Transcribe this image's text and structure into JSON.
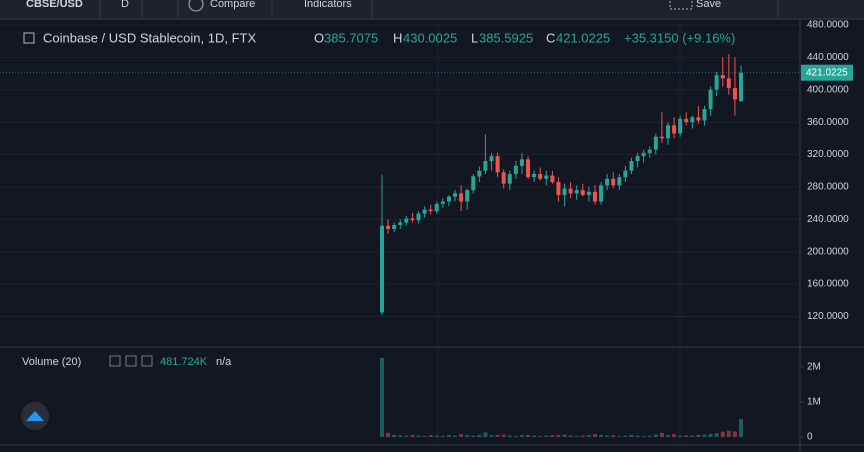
{
  "toolbar": {
    "symbol": "CBSE/USD",
    "interval": "D",
    "compare": "Compare",
    "indicators": "Indicators",
    "save": "Save"
  },
  "legend": {
    "title": "Coinbase / USD Stablecoin, 1D, FTX",
    "o": "O",
    "h": "H",
    "l": "L",
    "c": "C",
    "change": "+35.3150 (+9.16%)"
  },
  "volume_legend": {
    "title": "Volume (20)",
    "value": "481.724K",
    "na": "n/a"
  },
  "chart": {
    "type": "candlestick",
    "candles": [
      [
        125,
        295,
        122,
        232
      ],
      [
        232,
        240,
        222,
        228
      ],
      [
        228,
        236,
        224,
        233
      ],
      [
        233,
        240,
        228,
        236
      ],
      [
        236,
        244,
        232,
        241
      ],
      [
        241,
        248,
        236,
        239
      ],
      [
        239,
        250,
        235,
        247
      ],
      [
        247,
        256,
        242,
        252
      ],
      [
        252,
        258,
        246,
        250
      ],
      [
        250,
        262,
        247,
        259
      ],
      [
        259,
        266,
        254,
        262
      ],
      [
        262,
        270,
        256,
        268
      ],
      [
        268,
        276,
        262,
        272
      ],
      [
        272,
        282,
        250,
        262
      ],
      [
        262,
        278,
        252,
        276
      ],
      [
        276,
        296,
        272,
        293
      ],
      [
        293,
        305,
        286,
        300
      ],
      [
        300,
        345,
        296,
        312
      ],
      [
        312,
        322,
        300,
        318
      ],
      [
        318,
        322,
        292,
        298
      ],
      [
        298,
        302,
        278,
        284
      ],
      [
        284,
        300,
        276,
        296
      ],
      [
        296,
        312,
        290,
        306
      ],
      [
        306,
        322,
        296,
        314
      ],
      [
        314,
        318,
        290,
        292
      ],
      [
        292,
        300,
        286,
        296
      ],
      [
        296,
        304,
        288,
        290
      ],
      [
        290,
        300,
        282,
        294
      ],
      [
        294,
        300,
        284,
        286
      ],
      [
        286,
        292,
        262,
        270
      ],
      [
        270,
        284,
        256,
        278
      ],
      [
        278,
        286,
        266,
        272
      ],
      [
        272,
        282,
        264,
        276
      ],
      [
        276,
        284,
        268,
        270
      ],
      [
        270,
        280,
        262,
        274
      ],
      [
        274,
        282,
        258,
        262
      ],
      [
        262,
        286,
        258,
        282
      ],
      [
        282,
        296,
        276,
        290
      ],
      [
        290,
        298,
        278,
        282
      ],
      [
        282,
        296,
        276,
        292
      ],
      [
        292,
        306,
        286,
        300
      ],
      [
        300,
        316,
        296,
        312
      ],
      [
        312,
        322,
        304,
        318
      ],
      [
        318,
        326,
        310,
        322
      ],
      [
        322,
        330,
        316,
        326
      ],
      [
        326,
        346,
        320,
        342
      ],
      [
        342,
        372,
        334,
        340
      ],
      [
        340,
        360,
        332,
        356
      ],
      [
        356,
        366,
        340,
        346
      ],
      [
        346,
        368,
        342,
        364
      ],
      [
        364,
        372,
        356,
        360
      ],
      [
        360,
        368,
        352,
        366
      ],
      [
        366,
        380,
        358,
        362
      ],
      [
        362,
        380,
        356,
        376
      ],
      [
        376,
        404,
        368,
        400
      ],
      [
        400,
        422,
        392,
        418
      ],
      [
        418,
        440,
        404,
        414
      ],
      [
        414,
        444,
        394,
        402
      ],
      [
        402,
        440,
        368,
        388
      ],
      [
        385.7075,
        430.0025,
        385.5925,
        421.0225
      ]
    ],
    "volumes": [
      2260000,
      120000,
      60000,
      50000,
      40000,
      60000,
      40000,
      30000,
      50000,
      40000,
      30000,
      60000,
      40000,
      80000,
      50000,
      40000,
      60000,
      130000,
      50000,
      60000,
      70000,
      40000,
      30000,
      50000,
      60000,
      40000,
      30000,
      40000,
      50000,
      60000,
      70000,
      40000,
      30000,
      40000,
      50000,
      80000,
      60000,
      40000,
      50000,
      30000,
      40000,
      60000,
      40000,
      30000,
      40000,
      70000,
      120000,
      60000,
      80000,
      40000,
      50000,
      40000,
      60000,
      70000,
      90000,
      110000,
      150000,
      180000,
      160000,
      510000
    ],
    "up_color": "#26a69a",
    "down_color": "#ef5350",
    "ylim": [
      82.3,
      486.1
    ],
    "yticks": [
      {
        "value": 120,
        "label": "120.0000"
      },
      {
        "value": 160,
        "label": "160.0000"
      },
      {
        "value": 200,
        "label": "200.0000"
      },
      {
        "value": 240,
        "label": "240.0000"
      },
      {
        "value": 280,
        "label": "280.0000"
      },
      {
        "value": 320,
        "label": "320.0000"
      },
      {
        "value": 360,
        "label": "360.0000"
      },
      {
        "value": 400,
        "label": "400.0000"
      },
      {
        "value": 440,
        "label": "440.0000"
      },
      {
        "value": 480,
        "label": "480.0000"
      }
    ],
    "vlim": [
      -229000,
      2571000
    ],
    "vticks": [
      0,
      {
        "value": 1000000,
        "label": "1M"
      },
      {
        "value": 2000000,
        "label": "2M"
      }
    ]
  }
}
